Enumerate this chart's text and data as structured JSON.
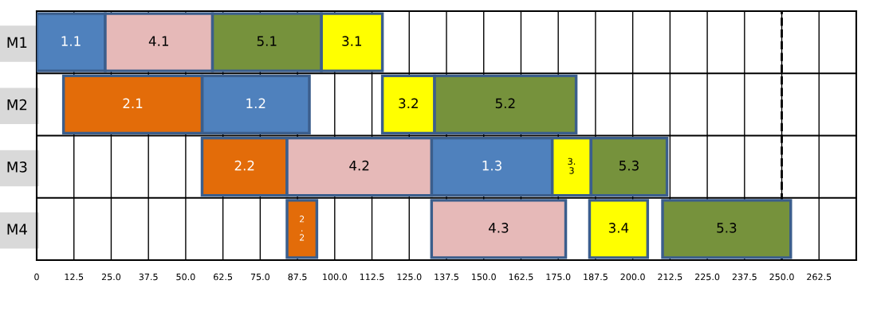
{
  "chart_data": {
    "type": "bar",
    "orientation": "horizontal",
    "categories": [
      "M1",
      "M2",
      "M3",
      "M4"
    ],
    "xlim": [
      0,
      275
    ],
    "xticks": [
      0,
      12.5,
      {
        "value": 25,
        "label": "25.0"
      },
      37.5,
      {
        "value": 50,
        "label": "50.0"
      },
      62.5,
      {
        "value": 75,
        "label": "75.0"
      },
      87.5,
      {
        "value": 100,
        "label": "100.0"
      },
      112.5,
      {
        "value": 125,
        "label": "125.0"
      },
      137.5,
      {
        "value": 150,
        "label": "150.0"
      },
      162.5,
      {
        "value": 175,
        "label": "175.0"
      },
      187.5,
      {
        "value": 200,
        "label": "200.0"
      },
      212.5,
      {
        "value": 225,
        "label": "225.0"
      },
      237.5,
      {
        "value": 250,
        "label": "250.0"
      },
      262.5
    ],
    "grid": true,
    "ref_lines": [
      {
        "axis": "x",
        "value": 250,
        "line_style": "dashed",
        "color": "#000000"
      }
    ],
    "series": [
      {
        "color": "#4f81bd",
        "base": [
          0,
          55.5,
          132.5,
          null
        ],
        "values": [
          23,
          36,
          40.5,
          null
        ]
      },
      {
        "color": "#e36c09",
        "base": [
          null,
          9,
          55.5,
          84
        ],
        "values": [
          null,
          46.5,
          28.5,
          10
        ]
      },
      {
        "color": "#ffff00",
        "base": [
          95.5,
          116,
          173,
          185.5
        ],
        "values": [
          20.5,
          17.5,
          13,
          19.5
        ]
      },
      {
        "color": "#e6b9b8",
        "base": [
          23,
          null,
          84,
          132.5
        ],
        "values": [
          36,
          null,
          48.5,
          45
        ]
      },
      {
        "color": "#76923c",
        "base": [
          59,
          133.5,
          186,
          210
        ],
        "values": [
          36.5,
          47.5,
          25.5,
          43
        ]
      }
    ],
    "annotations": [
      {
        "text": "1.1",
        "x": 11.5,
        "y": "M1"
      },
      {
        "text": "4.1",
        "x": 41,
        "y": "M1"
      },
      {
        "text": "5.1",
        "x": 77.25,
        "y": "M1"
      },
      {
        "text": "3.1",
        "x": 105.75,
        "y": "M1"
      },
      {
        "text": "2.1",
        "x": 32.25,
        "y": "M2"
      },
      {
        "text": "1.2",
        "x": 73.5,
        "y": "M2"
      },
      {
        "text": "3.2",
        "x": 124.75,
        "y": "M2"
      },
      {
        "text": "5.2",
        "x": 157.25,
        "y": "M2"
      },
      {
        "text": "2.2",
        "x": 69.75,
        "y": "M3"
      },
      {
        "text": "4.2",
        "x": 108.25,
        "y": "M3"
      },
      {
        "text": "1.3",
        "x": 152.75,
        "y": "M3"
      },
      {
        "text": "3.\n3",
        "x": 179.5,
        "y": "M3"
      },
      {
        "text": "5.3",
        "x": 198.75,
        "y": "M3"
      },
      {
        "text": "2\n.\n2",
        "x": 89,
        "y": "M4"
      },
      {
        "text": "4.3",
        "x": 155,
        "y": "M4"
      },
      {
        "text": "3.4",
        "x": 195.25,
        "y": "M4"
      },
      {
        "text": "5.3",
        "x": 231.5,
        "y": "M4"
      }
    ]
  }
}
